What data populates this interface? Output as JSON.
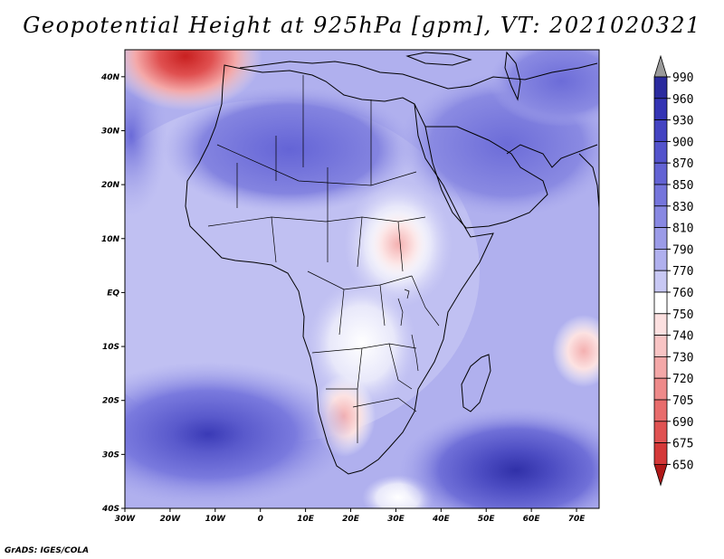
{
  "title": "Geopotential Height at 925hPa [gpm], VT: 2021020321",
  "footer": "GrADS: IGES/COLA",
  "map": {
    "variable": "Geopotential Height",
    "level": "925hPa",
    "units": "gpm",
    "valid_time": "2021020321",
    "lon_range": [
      -30,
      75
    ],
    "lat_range": [
      -40,
      45
    ],
    "x_ticks": [
      "30W",
      "20W",
      "10W",
      "0",
      "10E",
      "20E",
      "30E",
      "40E",
      "50E",
      "60E",
      "70E"
    ],
    "y_ticks": [
      "40N",
      "30N",
      "20N",
      "10N",
      "EQ",
      "10S",
      "20S",
      "30S",
      "40S"
    ]
  },
  "colorbar": {
    "labels": [
      "990",
      "960",
      "930",
      "900",
      "870",
      "850",
      "830",
      "810",
      "790",
      "770",
      "760",
      "750",
      "740",
      "730",
      "720",
      "705",
      "690",
      "675",
      "650"
    ],
    "colors": [
      "#2a2a9e",
      "#3434b4",
      "#4343c2",
      "#5353cc",
      "#6363d4",
      "#7575dc",
      "#8888e2",
      "#9b9be8",
      "#b0b0ee",
      "#c8c8f4",
      "#ffffff",
      "#fce0e0",
      "#f8c4c4",
      "#f4a8a8",
      "#ee8a8a",
      "#e86c6c",
      "#e05252",
      "#d43838",
      "#c02020"
    ],
    "top_arrow_color": "#9a9a9a",
    "bottom_arrow_color": "#b01818"
  },
  "colors": {
    "ocean_base": "#b4b4f0",
    "land_base": "#c6c6f4",
    "saharan_high": "#7676dc",
    "arabian_high": "#8080e0",
    "south_atl_high": "#6a6ad8",
    "south_ind_high": "#5a5ad0",
    "nw_low": "#e05050",
    "east_africa_low": "#fbe0e0"
  },
  "regions": {
    "nw_low_max_text": "",
    "south_atl_core": "",
    "south_ind_core": ""
  }
}
